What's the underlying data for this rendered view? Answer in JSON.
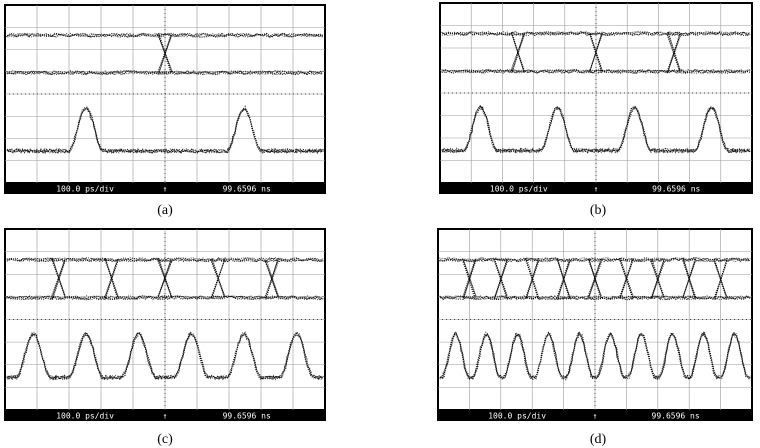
{
  "panels": [
    {
      "label": "(a)",
      "status": {
        "scale": "100.0 ps/div",
        "marker": "↑",
        "time": "99.6596 ns"
      }
    },
    {
      "label": "(b)",
      "status": {
        "scale": "100.0 ps/div",
        "marker": "↑",
        "time": "99.6596 ns"
      }
    },
    {
      "label": "(c)",
      "status": {
        "scale": "100.0 ps/div",
        "marker": "↑",
        "time": "99.6596 ns"
      }
    },
    {
      "label": "(d)",
      "status": {
        "scale": "100.0 ps/div",
        "marker": "↑",
        "time": "99.6596 ns"
      }
    }
  ]
}
